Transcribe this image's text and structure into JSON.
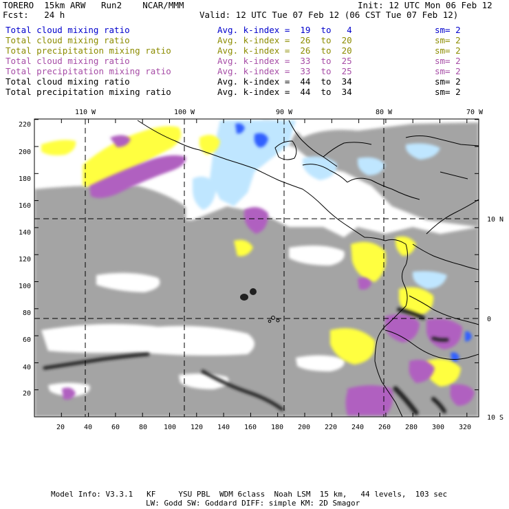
{
  "header": {
    "model_line": "TORERO  15km ARW   Run2    NCAR/MMM",
    "init": "Init: 12 UTC Mon 06 Feb 12",
    "fcst": "Fcst:   24 h",
    "valid": "Valid: 12 UTC Tue 07 Feb 12 (06 CST Tue 07 Feb 12)"
  },
  "legend": [
    {
      "field": "Total cloud mixing ratio",
      "stat": "Avg. k-index =  19  to   4",
      "sm": "sm= 2",
      "color": "#0000cc"
    },
    {
      "field": "Total cloud mixing ratio",
      "stat": "Avg. k-index =  26  to  20",
      "sm": "sm= 2",
      "color": "#8c8c00"
    },
    {
      "field": "Total precipitation mixing ratio",
      "stat": "Avg. k-index =  26  to  20",
      "sm": "sm= 2",
      "color": "#8c8c00"
    },
    {
      "field": "Total cloud mixing ratio",
      "stat": "Avg. k-index =  33  to  25",
      "sm": "sm= 2",
      "color": "#a64ca6"
    },
    {
      "field": "Total precipitation mixing ratio",
      "stat": "Avg. k-index =  33  to  25",
      "sm": "sm= 2",
      "color": "#a64ca6"
    },
    {
      "field": "Total cloud mixing ratio",
      "stat": "Avg. k-index =  44  to  34",
      "sm": "sm= 2",
      "color": "#000000"
    },
    {
      "field": "Total precipitation mixing ratio",
      "stat": "Avg. k-index =  44  to  34",
      "sm": "sm= 2",
      "color": "#000000"
    }
  ],
  "axes": {
    "top_longitudes": [
      "110 W",
      "100 W",
      "90 W",
      "80 W",
      "70 W"
    ],
    "right_latitudes": [
      "10 N",
      "0",
      "10 S"
    ],
    "bottom_ticks": [
      "20",
      "40",
      "60",
      "80",
      "100",
      "120",
      "140",
      "160",
      "180",
      "200",
      "220",
      "240",
      "260",
      "280",
      "300",
      "320"
    ],
    "left_ticks": [
      "220",
      "200",
      "180",
      "160",
      "140",
      "120",
      "100",
      "80",
      "60",
      "40",
      "20"
    ]
  },
  "footer": {
    "line1": "Model Info: V3.3.1   KF     YSU PBL  WDM 6class  Noah LSM  15 km,   44 levels,  103 sec",
    "line2": "LW: Godd SW: Goddard DIFF: simple KM: 2D Smagor"
  },
  "colors": {
    "gray_cloud": "#a0a0a0",
    "yellow": "#ffff40",
    "purple": "#b060c0",
    "light_blue": "#bfe6ff",
    "blue": "#3060ff",
    "black_band": "#202020"
  }
}
